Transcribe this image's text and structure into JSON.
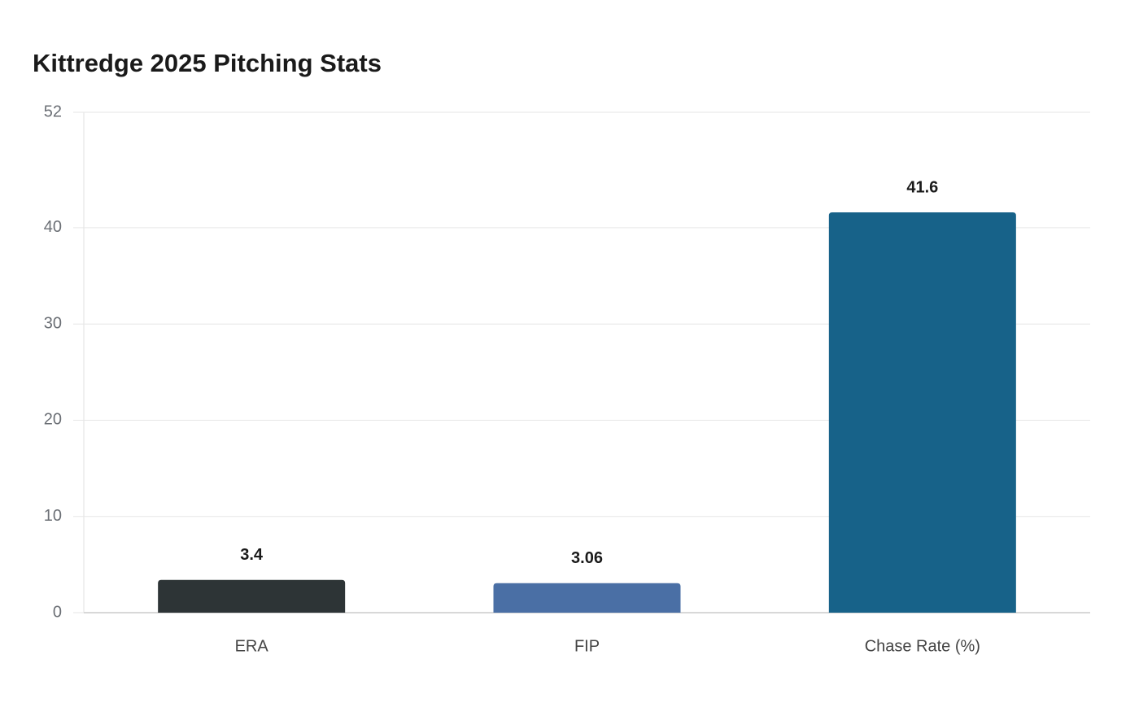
{
  "chart_data": {
    "type": "bar",
    "title": "Kittredge 2025 Pitching Stats",
    "categories": [
      "ERA",
      "FIP",
      "Chase Rate (%)"
    ],
    "values": [
      3.4,
      3.06,
      41.6
    ],
    "colors": [
      "#2d3436",
      "#4a6fa5",
      "#176289"
    ],
    "ylim": [
      0,
      52
    ],
    "yticks": [
      0,
      10,
      20,
      30,
      40,
      52
    ],
    "grid": true
  }
}
